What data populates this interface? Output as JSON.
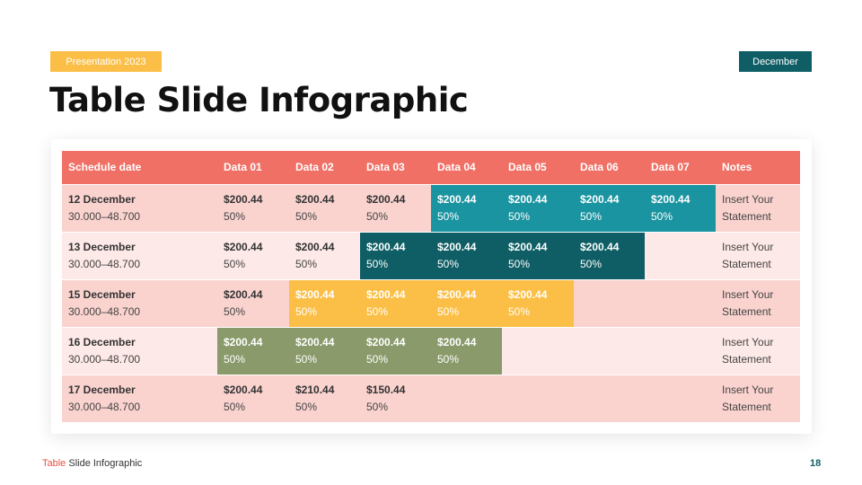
{
  "header": {
    "badge_left": "Presentation 2023",
    "badge_right": "December",
    "title": "Table Slide Infographic"
  },
  "colors": {
    "header_row": "#f07065",
    "teal": "#1a94a0",
    "dark_teal": "#0f5e66",
    "yellow": "#fbbf47",
    "olive": "#8a9a6a",
    "row_odd": "#fad3cf",
    "row_even": "#fde9e7"
  },
  "table": {
    "columns": [
      "Schedule date",
      "Data 01",
      "Data 02",
      "Data 03",
      "Data 04",
      "Data 05",
      "Data 06",
      "Data 07",
      "Notes"
    ],
    "rows": [
      {
        "date": "12 December",
        "range": "30.000–48.700",
        "cells": [
          {
            "value": "$200.44",
            "pct": "50%",
            "color": "none"
          },
          {
            "value": "$200.44",
            "pct": "50%",
            "color": "none"
          },
          {
            "value": "$200.44",
            "pct": "50%",
            "color": "none"
          },
          {
            "value": "$200.44",
            "pct": "50%",
            "color": "teal"
          },
          {
            "value": "$200.44",
            "pct": "50%",
            "color": "teal"
          },
          {
            "value": "$200.44",
            "pct": "50%",
            "color": "teal"
          },
          {
            "value": "$200.44",
            "pct": "50%",
            "color": "teal"
          }
        ],
        "note1": "Insert Your",
        "note2": "Statement"
      },
      {
        "date": "13 December",
        "range": "30.000–48.700",
        "cells": [
          {
            "value": "$200.44",
            "pct": "50%",
            "color": "none"
          },
          {
            "value": "$200.44",
            "pct": "50%",
            "color": "none"
          },
          {
            "value": "$200.44",
            "pct": "50%",
            "color": "dark"
          },
          {
            "value": "$200.44",
            "pct": "50%",
            "color": "dark"
          },
          {
            "value": "$200.44",
            "pct": "50%",
            "color": "dark"
          },
          {
            "value": "$200.44",
            "pct": "50%",
            "color": "dark"
          },
          {
            "value": "",
            "pct": "",
            "color": "none"
          }
        ],
        "note1": "Insert Your",
        "note2": "Statement"
      },
      {
        "date": "15 December",
        "range": "30.000–48.700",
        "cells": [
          {
            "value": "$200.44",
            "pct": "50%",
            "color": "none"
          },
          {
            "value": "$200.44",
            "pct": "50%",
            "color": "yellow"
          },
          {
            "value": "$200.44",
            "pct": "50%",
            "color": "yellow"
          },
          {
            "value": "$200.44",
            "pct": "50%",
            "color": "yellow"
          },
          {
            "value": "$200.44",
            "pct": "50%",
            "color": "yellow"
          },
          {
            "value": "",
            "pct": "",
            "color": "none"
          },
          {
            "value": "",
            "pct": "",
            "color": "none"
          }
        ],
        "note1": "Insert Your",
        "note2": "Statement"
      },
      {
        "date": "16 December",
        "range": "30.000–48.700",
        "cells": [
          {
            "value": "$200.44",
            "pct": "50%",
            "color": "green"
          },
          {
            "value": "$200.44",
            "pct": "50%",
            "color": "green"
          },
          {
            "value": "$200.44",
            "pct": "50%",
            "color": "green"
          },
          {
            "value": "$200.44",
            "pct": "50%",
            "color": "green"
          },
          {
            "value": "",
            "pct": "",
            "color": "none"
          },
          {
            "value": "",
            "pct": "",
            "color": "none"
          },
          {
            "value": "",
            "pct": "",
            "color": "none"
          }
        ],
        "note1": "Insert Your",
        "note2": "Statement"
      },
      {
        "date": "17 December",
        "range": "30.000–48.700",
        "cells": [
          {
            "value": "$200.44",
            "pct": "50%",
            "color": "none"
          },
          {
            "value": "$210.44",
            "pct": "50%",
            "color": "none"
          },
          {
            "value": "$150.44",
            "pct": "50%",
            "color": "none"
          },
          {
            "value": "",
            "pct": "",
            "color": "none"
          },
          {
            "value": "",
            "pct": "",
            "color": "none"
          },
          {
            "value": "",
            "pct": "",
            "color": "none"
          },
          {
            "value": "",
            "pct": "",
            "color": "none"
          }
        ],
        "note1": "Insert Your",
        "note2": "Statement"
      }
    ]
  },
  "footer": {
    "accent": "Table",
    "rest": " Slide Infographic",
    "page": "18"
  }
}
